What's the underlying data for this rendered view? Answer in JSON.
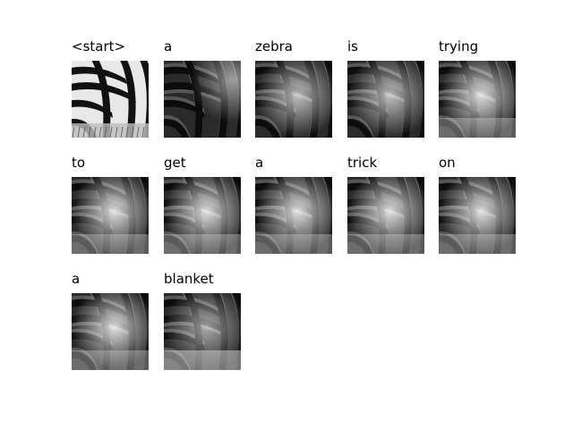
{
  "figure": {
    "words": [
      "<start>",
      "a",
      "zebra",
      "is",
      "trying",
      "to",
      "get",
      "a",
      "trick",
      "on",
      "a",
      "blanket"
    ]
  }
}
